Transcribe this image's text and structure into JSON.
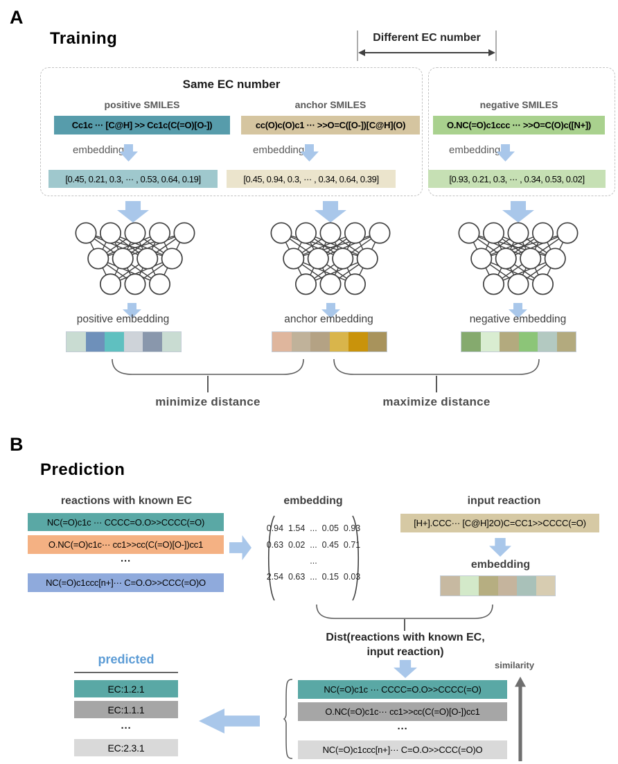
{
  "colors": {
    "accent_blue_arrow": "#a9c7ea",
    "teal_box": "#579cab",
    "tan_box": "#d5c5a0",
    "green_box": "#a9d18e",
    "teal_b": "#5aa8a5",
    "orange_b": "#f4b183",
    "blue_b": "#8faadc",
    "gray_b": "#a6a6a6",
    "lightgray_b": "#d9d9d9",
    "predicted_header_blue": "#5b9bd5"
  },
  "panelA": {
    "label": "A",
    "title": "Training",
    "different_ec": "Different EC number",
    "same_ec": "Same EC number",
    "minimize": "minimize distance",
    "maximize": "maximize distance",
    "columns": [
      {
        "header": "positive SMILES",
        "smiles": "Cc1c ··· [C@H] >> Cc1c(C(=O)[O-])",
        "box_bg": "#579cab",
        "embedding_label": "embedding",
        "vector": "[0.45, 0.21, 0.3, ··· , 0.53, 0.64, 0.19]",
        "vec_bg": "#9fc8cd",
        "strip_label": "positive embedding",
        "strip": [
          "#c9dcd2",
          "#6e90ba",
          "#5fc0c0",
          "#ced3d9",
          "#8997ac",
          "#c9dcd2"
        ]
      },
      {
        "header": "anchor SMILES",
        "smiles": "cc(O)c(O)c1 ··· >>O=C([O-])[C@H](O)",
        "box_bg": "#d5c5a0",
        "embedding_label": "embedding",
        "vector": "[0.45, 0.94, 0.3, ··· , 0.34, 0.64, 0.39]",
        "vec_bg": "#ebe4cc",
        "strip_label": "anchor embedding",
        "strip": [
          "#dfb69d",
          "#c0b29a",
          "#b4a284",
          "#d9b54b",
          "#c9930b",
          "#a8935c"
        ]
      },
      {
        "header": "negative SMILES",
        "smiles": "O.NC(=O)c1ccc ··· >>O=C(O)c([N+])",
        "box_bg": "#a9d18e",
        "embedding_label": "embedding",
        "vector": "[0.93, 0.21, 0.3, ··· , 0.34, 0.53, 0.02]",
        "vec_bg": "#c6e0b4",
        "strip_label": "negative embedding",
        "strip": [
          "#85aa6e",
          "#d9edd1",
          "#b3aa7e",
          "#8cc578",
          "#b3c9c1",
          "#b3aa7e"
        ]
      }
    ]
  },
  "panelB": {
    "label": "B",
    "title": "Prediction",
    "known_header": "reactions with known EC",
    "dots": "···",
    "known_reactions": [
      {
        "text": "NC(=O)c1c ··· CCCC=O.O>>CCCC(=O)",
        "bg": "#5aa8a5"
      },
      {
        "text": "O.NC(=O)c1c··· cc1>>cc(C(=O)[O-])cc1",
        "bg": "#f4b183"
      },
      {
        "text": "NC(=O)c1ccc[n+]··· C=O.O>>CCC(=O)O",
        "bg": "#8faadc"
      }
    ],
    "embedding_header": "embedding",
    "matrix_rows": [
      "0.94  1.54  ...  0.05  0.93",
      "0.63  0.02  ...  0.45  0.71",
      "...",
      "2.54  0.63  ...  0.15  0.03"
    ],
    "input_header": "input reaction",
    "input_reaction": "[H+].CCC··· [C@H]2O)C=CC1>>CCCC(=O)",
    "input_box_bg": "#d6c9a4",
    "input_embedding_label": "embedding",
    "input_strip": [
      "#c7b9a1",
      "#d3e9c9",
      "#b6ae81",
      "#c5b49d",
      "#a9c1b9",
      "#d7ccb1"
    ],
    "dist_line1": "Dist(reactions with known EC,",
    "dist_line2": "input reaction)",
    "similarity": "similarity",
    "predicted_header": "predicted",
    "predicted": [
      {
        "text": "EC:1.2.1",
        "bg": "#5aa8a5"
      },
      {
        "text": "EC:1.1.1",
        "bg": "#a6a6a6"
      },
      {
        "text": "EC:2.3.1",
        "bg": "#d9d9d9"
      }
    ],
    "ranked_reactions": [
      {
        "text": "NC(=O)c1c ··· CCCC=O.O>>CCCC(=O)",
        "bg": "#5aa8a5"
      },
      {
        "text": "O.NC(=O)c1c··· cc1>>cc(C(=O)[O-])cc1",
        "bg": "#a6a6a6"
      },
      {
        "text": "NC(=O)c1ccc[n+]··· C=O.O>>CCC(=O)O",
        "bg": "#d9d9d9"
      }
    ]
  }
}
